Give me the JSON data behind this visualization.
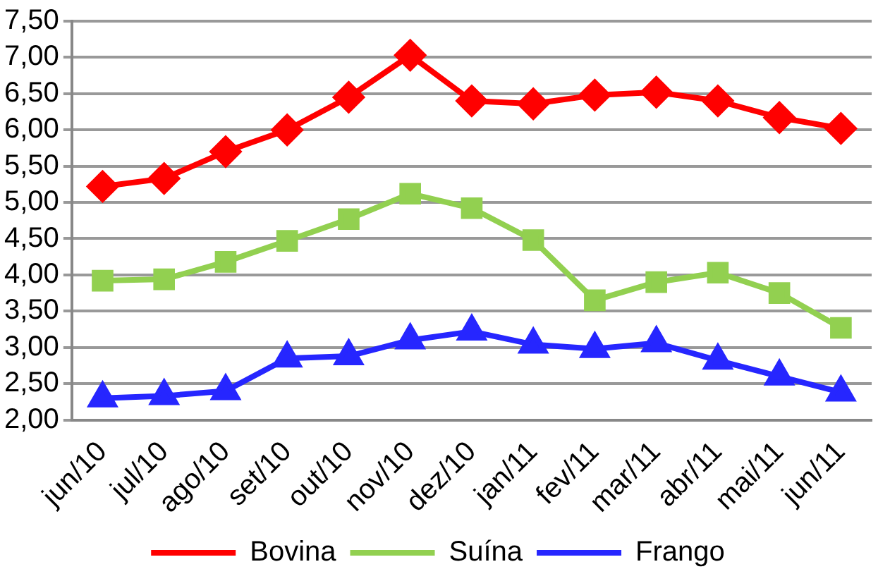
{
  "chart_data": {
    "type": "line",
    "categories": [
      "jun/10",
      "jul/10",
      "ago/10",
      "set/10",
      "out/10",
      "nov/10",
      "dez/10",
      "jan/11",
      "fev/11",
      "mar/11",
      "abr/11",
      "mai/11",
      "jun/11"
    ],
    "series": [
      {
        "name": "Bovina",
        "color": "#ff0000",
        "marker": "diamond",
        "values": [
          5.22,
          5.33,
          5.7,
          6.0,
          6.45,
          7.03,
          6.4,
          6.36,
          6.48,
          6.52,
          6.4,
          6.17,
          6.02
        ]
      },
      {
        "name": "Suína",
        "color": "#92d050",
        "marker": "square",
        "values": [
          3.92,
          3.94,
          4.18,
          4.47,
          4.77,
          5.12,
          4.92,
          4.48,
          3.65,
          3.9,
          4.03,
          3.75,
          3.27
        ]
      },
      {
        "name": "Frango",
        "color": "#2626ff",
        "marker": "triangle",
        "values": [
          2.3,
          2.33,
          2.4,
          2.85,
          2.88,
          3.1,
          3.22,
          3.04,
          2.98,
          3.06,
          2.82,
          2.6,
          2.38
        ]
      }
    ],
    "ylim": [
      2,
      7.5
    ],
    "yticks": [
      {
        "value": 2,
        "label": "2,00"
      },
      {
        "value": 2.5,
        "label": "2,50"
      },
      {
        "value": 3,
        "label": "3,00"
      },
      {
        "value": 3.5,
        "label": "3,50"
      },
      {
        "value": 4,
        "label": "4,00"
      },
      {
        "value": 4.5,
        "label": "4,50"
      },
      {
        "value": 5,
        "label": "5,00"
      },
      {
        "value": 5.5,
        "label": "5,50"
      },
      {
        "value": 6,
        "label": "6,00"
      },
      {
        "value": 6.5,
        "label": "6,50"
      },
      {
        "value": 7,
        "label": "7,00"
      },
      {
        "value": 7.5,
        "label": "7,50"
      }
    ],
    "grid": "y",
    "legend": "bottom"
  }
}
